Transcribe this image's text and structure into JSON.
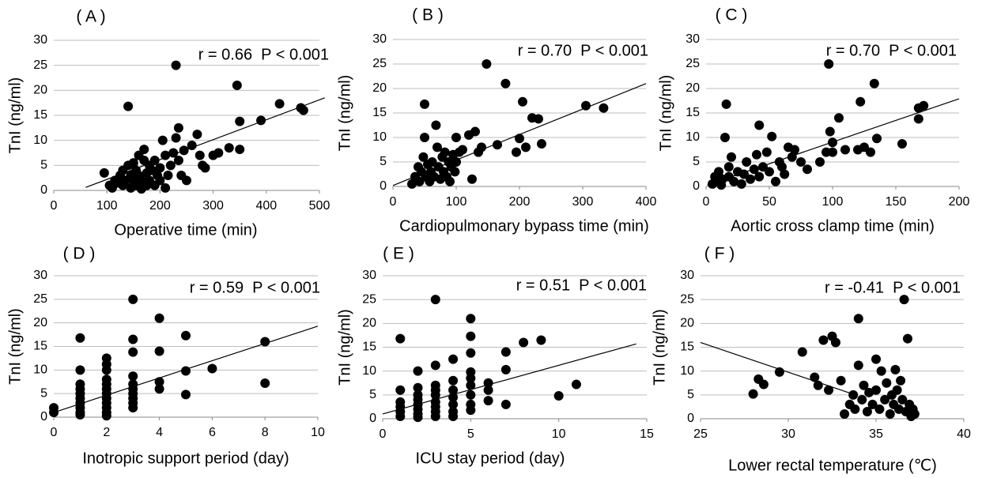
{
  "chart_data": [
    {
      "type": "scatter",
      "title": "( A )",
      "annotation": "r = 0.66  P < 0.001",
      "xlabel": "Operative time (min)",
      "ylabel": "TnI (ng/ml)",
      "color": "#000000",
      "grid": true,
      "xlim": [
        0,
        500
      ],
      "xticks": [
        0,
        100,
        200,
        300,
        400,
        500
      ],
      "ylim": [
        0,
        30
      ],
      "yticks": [
        0,
        5,
        10,
        15,
        20,
        25,
        30
      ],
      "x": [
        95,
        105,
        110,
        115,
        120,
        125,
        130,
        130,
        135,
        140,
        140,
        145,
        145,
        150,
        150,
        155,
        155,
        160,
        160,
        165,
        165,
        170,
        170,
        175,
        175,
        180,
        180,
        185,
        190,
        190,
        195,
        200,
        200,
        205,
        210,
        210,
        215,
        220,
        225,
        230,
        230,
        235,
        235,
        240,
        245,
        250,
        260,
        270,
        275,
        280,
        285,
        300,
        310,
        330,
        345,
        350,
        350,
        390,
        425,
        465,
        470
      ],
      "values": [
        3.5,
        1,
        0.5,
        2,
        1.5,
        3,
        1,
        4,
        2,
        5,
        16.8,
        0.5,
        3,
        2,
        5.5,
        1,
        4,
        3,
        7,
        0.3,
        2,
        6,
        8.2,
        1,
        3.5,
        2,
        5,
        4,
        1,
        6,
        3,
        2,
        4.5,
        10,
        0.5,
        7,
        3,
        5,
        7.5,
        25,
        10.5,
        12.5,
        6,
        3,
        8,
        2,
        9,
        11.2,
        7,
        5,
        4.5,
        7,
        7.5,
        8.5,
        21,
        13.8,
        8.2,
        14,
        17.3,
        16.5,
        16
      ],
      "trendline": {
        "x": [
          60,
          510
        ],
        "y": [
          0.6,
          18.5
        ]
      }
    },
    {
      "type": "scatter",
      "title": "( B )",
      "annotation": "r = 0.70  P < 0.001",
      "xlabel": "Cardiopulmonary bypass time (min)",
      "ylabel": "TnI (ng/ml)",
      "color": "#000000",
      "grid": true,
      "xlim": [
        0,
        400
      ],
      "xticks": [
        0,
        100,
        200,
        300,
        400
      ],
      "ylim": [
        0,
        30
      ],
      "yticks": [
        0,
        5,
        10,
        15,
        20,
        25,
        30
      ],
      "x": [
        30,
        35,
        40,
        42,
        45,
        48,
        50,
        50,
        52,
        55,
        58,
        60,
        62,
        65,
        68,
        70,
        72,
        75,
        78,
        80,
        82,
        85,
        88,
        90,
        92,
        95,
        98,
        100,
        100,
        105,
        110,
        120,
        125,
        130,
        135,
        140,
        148,
        165,
        178,
        195,
        200,
        205,
        210,
        220,
        230,
        235,
        305,
        333
      ],
      "values": [
        0.5,
        2,
        4,
        1,
        3,
        6,
        16.8,
        10,
        2,
        4.5,
        1,
        3,
        5,
        2,
        12.5,
        8,
        4,
        1.5,
        6,
        3,
        7,
        2,
        5,
        1,
        4,
        6.5,
        3,
        5,
        10,
        7,
        7.5,
        10.5,
        1.5,
        11.2,
        7,
        8,
        25,
        8.5,
        21,
        7,
        9.8,
        17.3,
        8,
        14,
        13.8,
        8.7,
        16.5,
        16
      ],
      "trendline": {
        "x": [
          0,
          400
        ],
        "y": [
          0.2,
          21
        ]
      }
    },
    {
      "type": "scatter",
      "title": "( C )",
      "annotation": "r = 0.70  P < 0.001",
      "xlabel": "Aortic cross clamp time (min)",
      "ylabel": "TnI (ng/ml)",
      "color": "#000000",
      "grid": true,
      "xlim": [
        0,
        200
      ],
      "xticks": [
        0,
        50,
        100,
        150,
        200
      ],
      "ylim": [
        0,
        30
      ],
      "yticks": [
        0,
        5,
        10,
        15,
        20,
        25,
        30
      ],
      "x": [
        5,
        7,
        8,
        10,
        12,
        13,
        15,
        16,
        18,
        18,
        20,
        22,
        25,
        28,
        30,
        32,
        35,
        38,
        40,
        42,
        42,
        45,
        48,
        50,
        52,
        55,
        58,
        60,
        62,
        65,
        68,
        70,
        75,
        80,
        90,
        95,
        97,
        98,
        100,
        100,
        105,
        110,
        120,
        122,
        125,
        130,
        133,
        135,
        155,
        168,
        168,
        172
      ],
      "values": [
        0.5,
        2,
        1,
        3,
        0.3,
        1.5,
        10,
        16.8,
        4,
        2,
        6,
        1,
        3,
        0.5,
        2.5,
        5,
        1.5,
        3.5,
        6.5,
        2,
        12.5,
        4,
        7,
        3,
        10.2,
        1,
        5,
        4,
        2.5,
        8,
        6,
        7.5,
        5,
        3.5,
        5,
        7,
        25,
        11.2,
        7,
        9,
        14,
        7.5,
        7.5,
        17.3,
        8,
        7,
        21,
        9.8,
        8.7,
        13.8,
        16,
        16.5
      ],
      "trendline": {
        "x": [
          1,
          200
        ],
        "y": [
          0.3,
          17.9
        ]
      }
    },
    {
      "type": "scatter",
      "title": "( D )",
      "annotation": "r = 0.59  P < 0.001",
      "xlabel": "Inotropic support period (day)",
      "ylabel": "TnI (ng/ml)",
      "color": "#000000",
      "grid": true,
      "xlim": [
        0,
        10
      ],
      "xticks": [
        0,
        2,
        4,
        6,
        8,
        10
      ],
      "ylim": [
        0,
        30
      ],
      "yticks": [
        0,
        5,
        10,
        15,
        20,
        25,
        30
      ],
      "x": [
        0,
        0,
        1,
        1,
        1,
        1,
        1,
        1,
        1,
        1,
        1,
        1,
        2,
        2,
        2,
        2,
        2,
        2,
        2,
        2,
        2,
        2,
        2,
        2,
        3,
        3,
        3,
        3,
        3,
        3,
        3,
        3,
        3,
        3,
        4,
        4,
        4,
        4,
        5,
        5,
        5,
        6,
        8,
        8
      ],
      "values": [
        1,
        2,
        0.5,
        1,
        2,
        3,
        4,
        5,
        6,
        7,
        10,
        16.8,
        0.3,
        1,
        2,
        3,
        4,
        5,
        6,
        7,
        8,
        10,
        11.2,
        12.5,
        2,
        3,
        4,
        5,
        6,
        7,
        8.7,
        13.8,
        16.5,
        25,
        6,
        7.5,
        14,
        21,
        4.8,
        9.8,
        17.3,
        10.3,
        7.2,
        16
      ],
      "trendline": {
        "x": [
          0,
          10
        ],
        "y": [
          1,
          19.3
        ]
      }
    },
    {
      "type": "scatter",
      "title": "( E )",
      "annotation": "r = 0.51  P < 0.001",
      "xlabel": "ICU stay period (day)",
      "ylabel": "TnI (ng/ml)",
      "color": "#000000",
      "grid": true,
      "xlim": [
        0,
        15
      ],
      "xticks": [
        0,
        5,
        10,
        15
      ],
      "ylim": [
        0,
        30
      ],
      "yticks": [
        0,
        5,
        10,
        15,
        20,
        25,
        30
      ],
      "x": [
        1,
        1,
        1,
        1,
        1,
        1,
        2,
        2,
        2,
        2,
        2,
        2,
        2,
        2,
        3,
        3,
        3,
        3,
        3,
        3,
        3,
        3,
        3,
        4,
        4,
        4,
        4,
        4,
        4,
        4,
        5,
        5,
        5,
        5,
        5,
        5,
        5,
        5,
        5,
        6,
        6,
        6,
        7,
        7,
        7,
        8,
        9,
        10,
        11
      ],
      "values": [
        0.5,
        1.5,
        2.5,
        3.5,
        6,
        16.8,
        0.3,
        1,
        2,
        3,
        4,
        5,
        6.5,
        10,
        0.5,
        1.5,
        2.5,
        3.5,
        5,
        6,
        7,
        11.2,
        25,
        0.5,
        1.5,
        3,
        4.5,
        6,
        8,
        12.5,
        1.8,
        3,
        5,
        7,
        8.5,
        9.8,
        13.8,
        17.3,
        21,
        3.8,
        6,
        7.5,
        3,
        10.3,
        14,
        16,
        16.5,
        4.8,
        7.2
      ],
      "trendline": {
        "x": [
          0,
          14.4
        ],
        "y": [
          1,
          15.7
        ]
      }
    },
    {
      "type": "scatter",
      "title": "( F )",
      "annotation": "r = -0.41  P < 0.001",
      "xlabel": "Lower rectal temperature (℃)",
      "ylabel": "TnI (ng/ml)",
      "color": "#000000",
      "grid": true,
      "xlim": [
        25,
        40
      ],
      "xticks": [
        25,
        30,
        35,
        40
      ],
      "ylim": [
        0,
        30
      ],
      "yticks": [
        0,
        5,
        10,
        15,
        20,
        25,
        30
      ],
      "x": [
        28,
        28.3,
        28.6,
        29.5,
        30.8,
        31.5,
        31.7,
        32,
        32.3,
        32.5,
        32.7,
        33,
        33.2,
        33.5,
        33.7,
        33.8,
        34,
        34,
        34.2,
        34.3,
        34.5,
        34.6,
        34.8,
        35,
        35,
        35.2,
        35.3,
        35.5,
        35.6,
        35.8,
        35.9,
        36,
        36.1,
        36.2,
        36.3,
        36.4,
        36.5,
        36.6,
        36.7,
        36.8,
        36.9,
        37,
        37.1,
        37.2
      ],
      "values": [
        5.2,
        8.3,
        7.2,
        9.8,
        14,
        8.7,
        7,
        16.5,
        6,
        17.3,
        16,
        8,
        1,
        3,
        5,
        2,
        11.2,
        21,
        4,
        7,
        1.5,
        5.5,
        3,
        12.5,
        6,
        2,
        10,
        4,
        7.5,
        1,
        5,
        3,
        10.3,
        6,
        2,
        8,
        4,
        25,
        1.5,
        16.8,
        3,
        0.5,
        2,
        1
      ],
      "trendline": {
        "x": [
          25,
          33.9
        ],
        "y": [
          16,
          4.9
        ]
      }
    }
  ]
}
